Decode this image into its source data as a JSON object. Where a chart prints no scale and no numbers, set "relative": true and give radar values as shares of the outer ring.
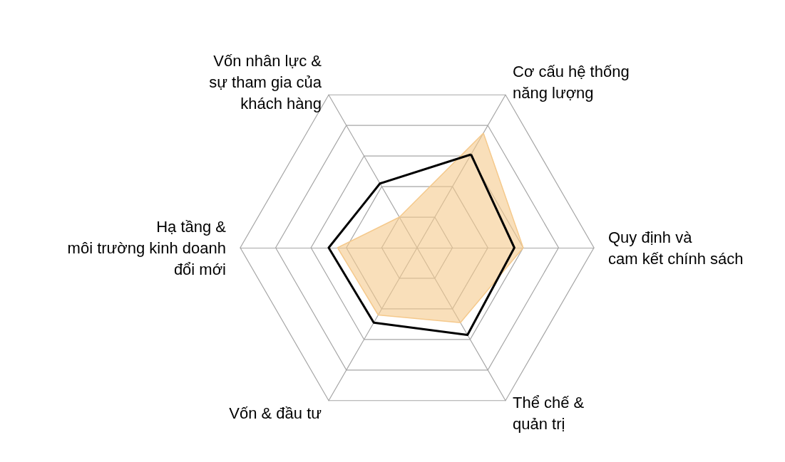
{
  "chart_data": {
    "type": "radar",
    "relative": true,
    "categories": [
      "Cơ cấu hệ thống\nnăng lượng",
      "Quy định và\ncam kết chính sách",
      "Thể chế &\nquản trị",
      "Vốn & đầu tư",
      "Hạ tầng &\nmôi trường kinh doanh\nđổi mới",
      "Vốn nhân lực &\nsự tham gia của\nkhách hàng"
    ],
    "series": [
      {
        "color": "#f5c98c",
        "type": "area",
        "values": [
          0.75,
          0.6,
          0.49,
          0.44,
          0.45,
          0.2
        ]
      },
      {
        "color": "#000000",
        "values": [
          0.61,
          0.55,
          0.57,
          0.49,
          0.5,
          0.42
        ]
      }
    ]
  }
}
